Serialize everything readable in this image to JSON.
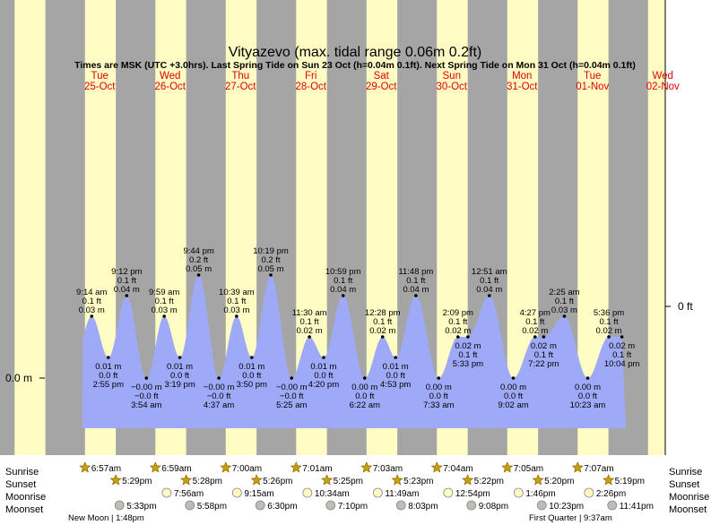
{
  "chart_data": {
    "type": "area",
    "title": "Vityazevo (max. tidal range 0.06m 0.2ft)",
    "subtitle": "Times are MSK (UTC +3.0hrs). Last Spring Tide on Sun 23 Oct (h=0.04m 0.1ft). Next Spring Tide on Mon 31 Oct (h=0.04m 0.1ft)",
    "left_axis_label": "0.0 m",
    "right_axis_label": "0 ft",
    "ylim_m": [
      -0.03,
      0.07
    ],
    "days": [
      {
        "dow": "Tue",
        "date": "25-Oct"
      },
      {
        "dow": "Wed",
        "date": "26-Oct"
      },
      {
        "dow": "Thu",
        "date": "27-Oct"
      },
      {
        "dow": "Fri",
        "date": "28-Oct"
      },
      {
        "dow": "Sat",
        "date": "29-Oct"
      },
      {
        "dow": "Sun",
        "date": "30-Oct"
      },
      {
        "dow": "Mon",
        "date": "31-Oct"
      },
      {
        "dow": "Tue",
        "date": "01-Nov"
      },
      {
        "dow": "Wed",
        "date": "02-Nov"
      }
    ],
    "tides": [
      {
        "time": "9:14 am",
        "m": "0.03 m",
        "ft": "0.1 ft",
        "type": "high",
        "day": 0.385,
        "h": 0.03
      },
      {
        "time": "2:55 pm",
        "m": "0.01 m",
        "ft": "0.0 ft",
        "type": "low",
        "day": 0.622,
        "h": 0.01
      },
      {
        "time": "9:12 pm",
        "m": "0.04 m",
        "ft": "0.1 ft",
        "type": "high",
        "day": 0.883,
        "h": 0.04
      },
      {
        "time": "3:54 am",
        "m": "−0.00 m",
        "ft": "−0.0 ft",
        "type": "low",
        "day": 1.163,
        "h": 0.0
      },
      {
        "time": "9:59 am",
        "m": "0.03 m",
        "ft": "0.1 ft",
        "type": "high",
        "day": 1.416,
        "h": 0.03
      },
      {
        "time": "3:19 pm",
        "m": "0.01 m",
        "ft": "0.0 ft",
        "type": "low",
        "day": 1.638,
        "h": 0.01
      },
      {
        "time": "9:44 pm",
        "m": "0.05 m",
        "ft": "0.2 ft",
        "type": "high",
        "day": 1.906,
        "h": 0.05
      },
      {
        "time": "4:37 am",
        "m": "−0.00 m",
        "ft": "−0.0 ft",
        "type": "low",
        "day": 2.192,
        "h": 0.0
      },
      {
        "time": "10:39 am",
        "m": "0.03 m",
        "ft": "0.1 ft",
        "type": "high",
        "day": 2.444,
        "h": 0.03
      },
      {
        "time": "3:50 pm",
        "m": "0.01 m",
        "ft": "0.0 ft",
        "type": "low",
        "day": 2.66,
        "h": 0.01
      },
      {
        "time": "10:19 pm",
        "m": "0.05 m",
        "ft": "0.2 ft",
        "type": "high",
        "day": 2.93,
        "h": 0.05
      },
      {
        "time": "5:25 am",
        "m": "−0.00 m",
        "ft": "−0.0 ft",
        "type": "low",
        "day": 3.226,
        "h": 0.0
      },
      {
        "time": "11:30 am",
        "m": "0.02 m",
        "ft": "0.1 ft",
        "type": "high",
        "day": 3.479,
        "h": 0.02
      },
      {
        "time": "4:20 pm",
        "m": "0.01 m",
        "ft": "0.0 ft",
        "type": "low",
        "day": 3.681,
        "h": 0.01
      },
      {
        "time": "10:59 pm",
        "m": "0.04 m",
        "ft": "0.1 ft",
        "type": "high",
        "day": 3.958,
        "h": 0.04
      },
      {
        "time": "6:22 am",
        "m": "0.00 m",
        "ft": "0.0 ft",
        "type": "low",
        "day": 4.265,
        "h": 0.0
      },
      {
        "time": "12:28 pm",
        "m": "0.02 m",
        "ft": "0.1 ft",
        "type": "high",
        "day": 4.519,
        "h": 0.02
      },
      {
        "time": "4:53 pm",
        "m": "0.01 m",
        "ft": "0.0 ft",
        "type": "low",
        "day": 4.703,
        "h": 0.01
      },
      {
        "time": "11:48 pm",
        "m": "0.04 m",
        "ft": "0.1 ft",
        "type": "high",
        "day": 4.992,
        "h": 0.04
      },
      {
        "time": "7:33 am",
        "m": "0.00 m",
        "ft": "0.0 ft",
        "type": "low",
        "day": 5.315,
        "h": 0.0
      },
      {
        "time": "2:09 pm",
        "m": "0.02 m",
        "ft": "0.1 ft",
        "type": "high",
        "day": 5.59,
        "h": 0.02
      },
      {
        "time": "5:33 pm",
        "m": "0.02 m",
        "ft": "0.1 ft",
        "type": "low",
        "day": 5.731,
        "h": 0.02
      },
      {
        "time": "12:51 am",
        "m": "0.04 m",
        "ft": "0.1 ft",
        "type": "high",
        "day": 6.035,
        "h": 0.04
      },
      {
        "time": "9:02 am",
        "m": "0.00 m",
        "ft": "0.0 ft",
        "type": "low",
        "day": 6.376,
        "h": 0.0
      },
      {
        "time": "4:27 pm",
        "m": "0.02 m",
        "ft": "0.1 ft",
        "type": "high",
        "day": 6.685,
        "h": 0.02
      },
      {
        "time": "7:22 pm",
        "m": "0.02 m",
        "ft": "0.1 ft",
        "type": "low",
        "day": 6.807,
        "h": 0.02
      },
      {
        "time": "2:25 am",
        "m": "0.03 m",
        "ft": "0.1 ft",
        "type": "high",
        "day": 7.101,
        "h": 0.03
      },
      {
        "time": "10:23 am",
        "m": "0.00 m",
        "ft": "0.0 ft",
        "type": "low",
        "day": 7.433,
        "h": 0.0
      },
      {
        "time": "5:36 pm",
        "m": "0.02 m",
        "ft": "0.1 ft",
        "type": "high",
        "day": 7.733,
        "h": 0.02
      },
      {
        "time": "10:04 pm",
        "m": "0.02 m",
        "ft": "0.1 ft",
        "type": "low",
        "day": 7.919,
        "h": 0.02
      }
    ],
    "sun_moon": {
      "labels": {
        "sunrise": "Sunrise",
        "sunset": "Sunset",
        "moonrise": "Moonrise",
        "moonset": "Moonset"
      },
      "sunrise": [
        "6:57am",
        "6:59am",
        "7:00am",
        "7:01am",
        "7:03am",
        "7:04am",
        "7:05am",
        "7:07am"
      ],
      "sunset": [
        "5:29pm",
        "5:28pm",
        "5:26pm",
        "5:25pm",
        "5:23pm",
        "5:22pm",
        "5:20pm",
        "5:19pm"
      ],
      "moonrise": [
        "7:56am",
        "9:15am",
        "10:34am",
        "11:49am",
        "12:54pm",
        "1:46pm",
        "2:26pm"
      ],
      "moonset": [
        "5:33pm",
        "5:58pm",
        "6:30pm",
        "7:10pm",
        "8:03pm",
        "9:08pm",
        "10:23pm",
        "11:41pm"
      ]
    },
    "moon_phases": [
      {
        "label": "New Moon | 1:48pm"
      },
      {
        "label": "First Quarter | 9:37am"
      }
    ]
  }
}
